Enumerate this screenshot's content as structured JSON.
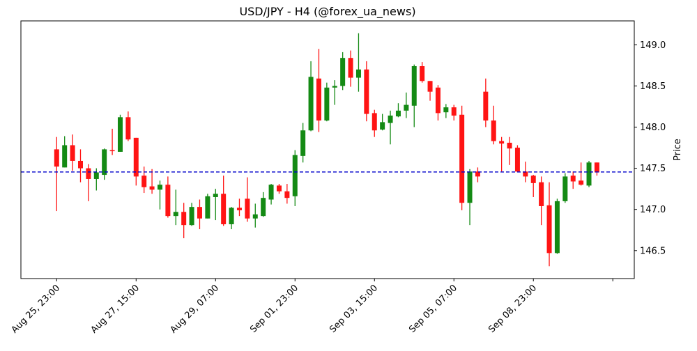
{
  "chart_data": {
    "type": "candlestick",
    "title": "USD/JPY - H4 (@forex_ua_news)",
    "xlabel": "",
    "ylabel": "Price",
    "ylim": [
      146.16,
      149.29
    ],
    "y_ticks": [
      146.5,
      147.0,
      147.5,
      148.0,
      148.5,
      149.0
    ],
    "y_tick_labels": [
      "146.5",
      "147.0",
      "147.5",
      "148.0",
      "148.5",
      "149.0"
    ],
    "x_ticks": [
      0,
      10,
      20,
      30,
      40,
      50,
      60,
      70
    ],
    "x_tick_labels": [
      "Aug 25, 23:00",
      "Aug 27, 15:00",
      "Aug 29, 07:00",
      "Sep 01, 23:00",
      "Sep 03, 15:00",
      "Sep 05, 07:00",
      "Sep 08, 23:00",
      ""
    ],
    "xlim": [
      -4.5,
      72.7
    ],
    "grid": false,
    "reference_line": {
      "value": 147.455,
      "style": "dashed",
      "color": "#0000cc"
    },
    "colors": {
      "up": "#148a14",
      "down": "#ff1414"
    },
    "ohlc": [
      [
        147.73,
        147.88,
        146.98,
        147.52
      ],
      [
        147.51,
        147.89,
        147.51,
        147.78
      ],
      [
        147.78,
        147.91,
        147.47,
        147.59
      ],
      [
        147.59,
        147.73,
        147.33,
        147.5
      ],
      [
        147.5,
        147.55,
        147.1,
        147.37
      ],
      [
        147.37,
        147.5,
        147.23,
        147.45
      ],
      [
        147.42,
        147.74,
        147.36,
        147.73
      ],
      [
        147.72,
        147.98,
        147.66,
        147.71
      ],
      [
        147.7,
        148.15,
        147.7,
        148.12
      ],
      [
        148.12,
        148.19,
        147.83,
        147.85
      ],
      [
        147.87,
        147.87,
        147.29,
        147.4
      ],
      [
        147.41,
        147.52,
        147.2,
        147.27
      ],
      [
        147.28,
        147.49,
        147.19,
        147.24
      ],
      [
        147.24,
        147.35,
        147.0,
        147.3
      ],
      [
        147.3,
        147.4,
        146.9,
        146.92
      ],
      [
        146.92,
        147.24,
        146.81,
        146.97
      ],
      [
        146.97,
        147.08,
        146.65,
        146.81
      ],
      [
        146.81,
        147.08,
        146.8,
        147.03
      ],
      [
        147.03,
        147.12,
        146.76,
        146.89
      ],
      [
        146.89,
        147.19,
        146.89,
        147.16
      ],
      [
        147.15,
        147.25,
        146.87,
        147.19
      ],
      [
        147.19,
        147.41,
        146.8,
        146.82
      ],
      [
        146.82,
        147.03,
        146.76,
        147.02
      ],
      [
        147.02,
        147.13,
        146.92,
        146.99
      ],
      [
        147.13,
        147.39,
        146.85,
        146.89
      ],
      [
        146.89,
        147.07,
        146.78,
        146.94
      ],
      [
        146.92,
        147.21,
        146.91,
        147.14
      ],
      [
        147.12,
        147.31,
        147.06,
        147.3
      ],
      [
        147.29,
        147.31,
        147.19,
        147.22
      ],
      [
        147.22,
        147.31,
        147.07,
        147.14
      ],
      [
        147.16,
        147.72,
        147.04,
        147.66
      ],
      [
        147.65,
        148.05,
        147.57,
        147.96
      ],
      [
        147.96,
        148.8,
        147.95,
        148.61
      ],
      [
        148.59,
        148.95,
        147.94,
        148.08
      ],
      [
        148.08,
        148.54,
        148.07,
        148.48
      ],
      [
        148.48,
        148.57,
        148.27,
        148.5
      ],
      [
        148.5,
        148.91,
        148.45,
        148.84
      ],
      [
        148.84,
        148.93,
        148.49,
        148.6
      ],
      [
        148.6,
        149.14,
        148.43,
        148.7
      ],
      [
        148.7,
        148.8,
        148.07,
        148.16
      ],
      [
        148.17,
        148.21,
        147.88,
        147.96
      ],
      [
        147.97,
        148.16,
        147.96,
        148.06
      ],
      [
        148.05,
        148.2,
        147.79,
        148.14
      ],
      [
        148.13,
        148.29,
        148.12,
        148.2
      ],
      [
        148.2,
        148.42,
        148.11,
        148.27
      ],
      [
        148.26,
        148.76,
        148.0,
        148.74
      ],
      [
        148.74,
        148.79,
        148.54,
        148.56
      ],
      [
        148.56,
        148.56,
        148.32,
        148.43
      ],
      [
        148.48,
        148.51,
        148.08,
        148.17
      ],
      [
        148.18,
        148.28,
        148.11,
        148.24
      ],
      [
        148.24,
        148.27,
        148.08,
        148.14
      ],
      [
        148.15,
        148.26,
        146.99,
        147.08
      ],
      [
        147.08,
        147.49,
        146.81,
        147.46
      ],
      [
        147.46,
        147.51,
        147.33,
        147.4
      ],
      [
        148.43,
        148.59,
        148.0,
        148.08
      ],
      [
        148.08,
        148.26,
        147.79,
        147.83
      ],
      [
        147.83,
        147.88,
        147.46,
        147.8
      ],
      [
        147.81,
        147.88,
        147.54,
        147.74
      ],
      [
        147.75,
        147.78,
        147.45,
        147.46
      ],
      [
        147.46,
        147.58,
        147.33,
        147.4
      ],
      [
        147.41,
        147.42,
        147.15,
        147.32
      ],
      [
        147.33,
        147.4,
        146.81,
        147.04
      ],
      [
        147.05,
        147.33,
        146.31,
        146.47
      ],
      [
        146.47,
        147.13,
        146.46,
        147.1
      ],
      [
        147.1,
        147.44,
        147.08,
        147.4
      ],
      [
        147.41,
        147.46,
        147.25,
        147.34
      ],
      [
        147.35,
        147.57,
        147.29,
        147.3
      ],
      [
        147.29,
        147.59,
        147.27,
        147.57
      ],
      [
        147.57,
        147.57,
        147.41,
        147.45
      ]
    ]
  }
}
